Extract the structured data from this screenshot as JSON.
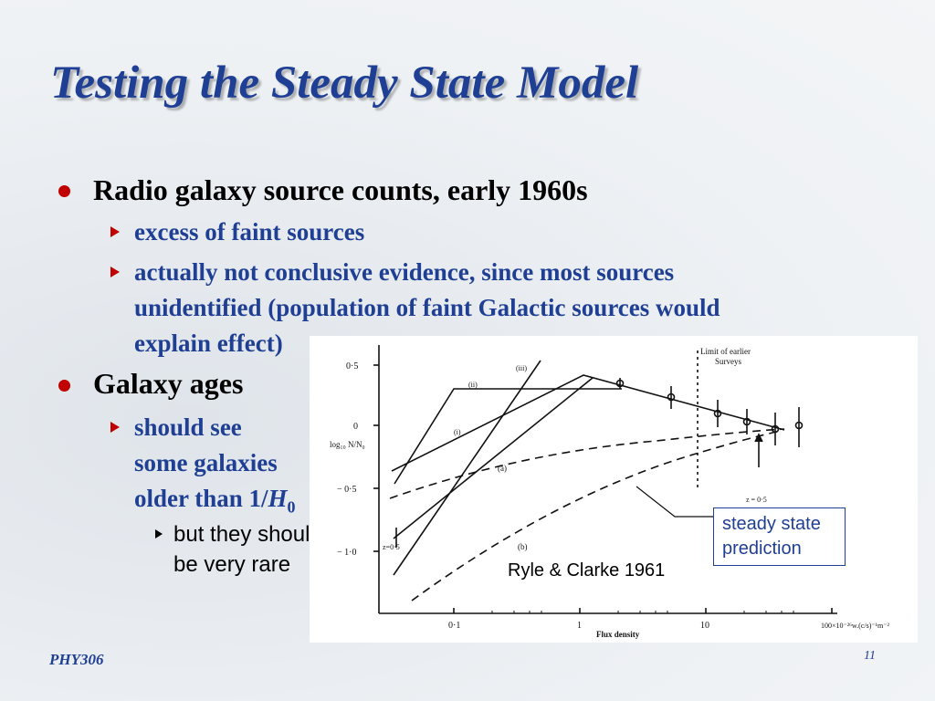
{
  "slide": {
    "title": "Testing the Steady State Model",
    "bullets": [
      {
        "text": "Radio galaxy source counts, early 1960s",
        "sub": [
          {
            "text": "excess of faint sources"
          },
          {
            "lines": [
              "actually not conclusive evidence, since most sources",
              "unidentified (population of faint Galactic sources would",
              "explain effect)"
            ]
          }
        ]
      },
      {
        "text": "Galaxy ages",
        "sub": [
          {
            "lines": [
              "should see",
              "some galaxies",
              "older than 1/"
            ],
            "H": "H",
            "H_sub": "0",
            "sub": [
              {
                "lines": [
                  "but they should",
                  "be very rare"
                ]
              }
            ]
          }
        ]
      }
    ]
  },
  "figure": {
    "caption": "Ryle & Clarke 1961",
    "callout": [
      "steady state",
      "prediction"
    ],
    "labels": {
      "y_ticks": [
        "0·5",
        "0",
        "− 0·5",
        "− 1·0"
      ],
      "x_ticks": [
        "0·1",
        "1",
        "10",
        "100×10⁻²⁶w.(c/s)⁻¹m⁻²"
      ],
      "x_axis": "Flux  density",
      "y_axis": "log₁₀ N/N₀",
      "limit": [
        "Limit  of  earlier",
        "Surveys"
      ],
      "curve_i": "(i)",
      "curve_ii": "(ii)",
      "curve_iii": "(iii)",
      "curve_a": "(a)",
      "curve_b": "(b)",
      "z_left": "z=0·5",
      "z_right": "z = 0·5"
    }
  },
  "footer": {
    "course": "PHY306",
    "page": "11"
  }
}
